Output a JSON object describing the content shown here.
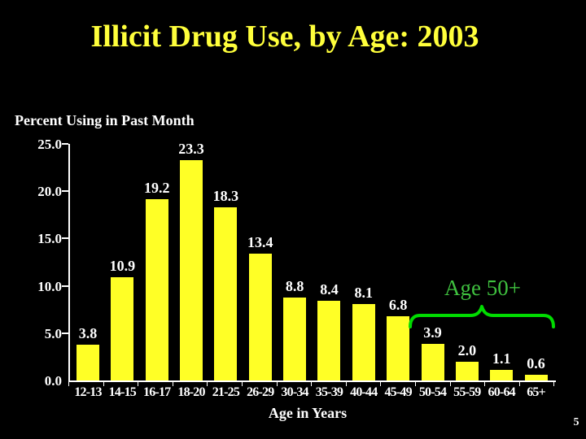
{
  "slide": {
    "title": "Illicit Drug Use, by Age: 2003",
    "y_axis_caption": "Percent Using in Past Month",
    "x_axis_title": "Age in Years",
    "annotation_label": "Age 50+",
    "page_number": "5",
    "colors": {
      "background": "#000000",
      "title": "#FFFF3B",
      "bar": "#FFFF26",
      "text": "#FFFFFF",
      "annotation": "#3FC13F",
      "brace": "#00DC00",
      "axis": "#FFFFFF"
    }
  },
  "chart_data": {
    "type": "bar",
    "title": "Illicit Drug Use, by Age: 2003",
    "xlabel": "Age in Years",
    "ylabel": "Percent Using in Past Month",
    "categories": [
      "12-13",
      "14-15",
      "16-17",
      "18-20",
      "21-25",
      "26-29",
      "30-34",
      "35-39",
      "40-44",
      "45-49",
      "50-54",
      "55-59",
      "60-64",
      "65+"
    ],
    "values": [
      3.8,
      10.9,
      19.2,
      23.3,
      18.3,
      13.4,
      8.8,
      8.4,
      8.1,
      6.8,
      3.9,
      2.0,
      1.1,
      0.6
    ],
    "value_labels": [
      "3.8",
      "10.9",
      "19.2",
      "23.3",
      "18.3",
      "13.4",
      "8.8",
      "8.4",
      "8.1",
      "6.8",
      "3.9",
      "2.0",
      "1.1",
      "0.6"
    ],
    "y_tick_labels": [
      "0.0",
      "5.0",
      "10.0",
      "15.0",
      "20.0",
      "25.0"
    ],
    "ylim": [
      0,
      25
    ],
    "grid": false,
    "legend": false,
    "bar_color": "#FFFF26",
    "annotations": [
      {
        "text": "Age 50+",
        "color": "#3FC13F",
        "shape": "green curly brace",
        "spans_categories": [
          "50-54",
          "55-59",
          "60-64",
          "65+"
        ]
      }
    ]
  }
}
